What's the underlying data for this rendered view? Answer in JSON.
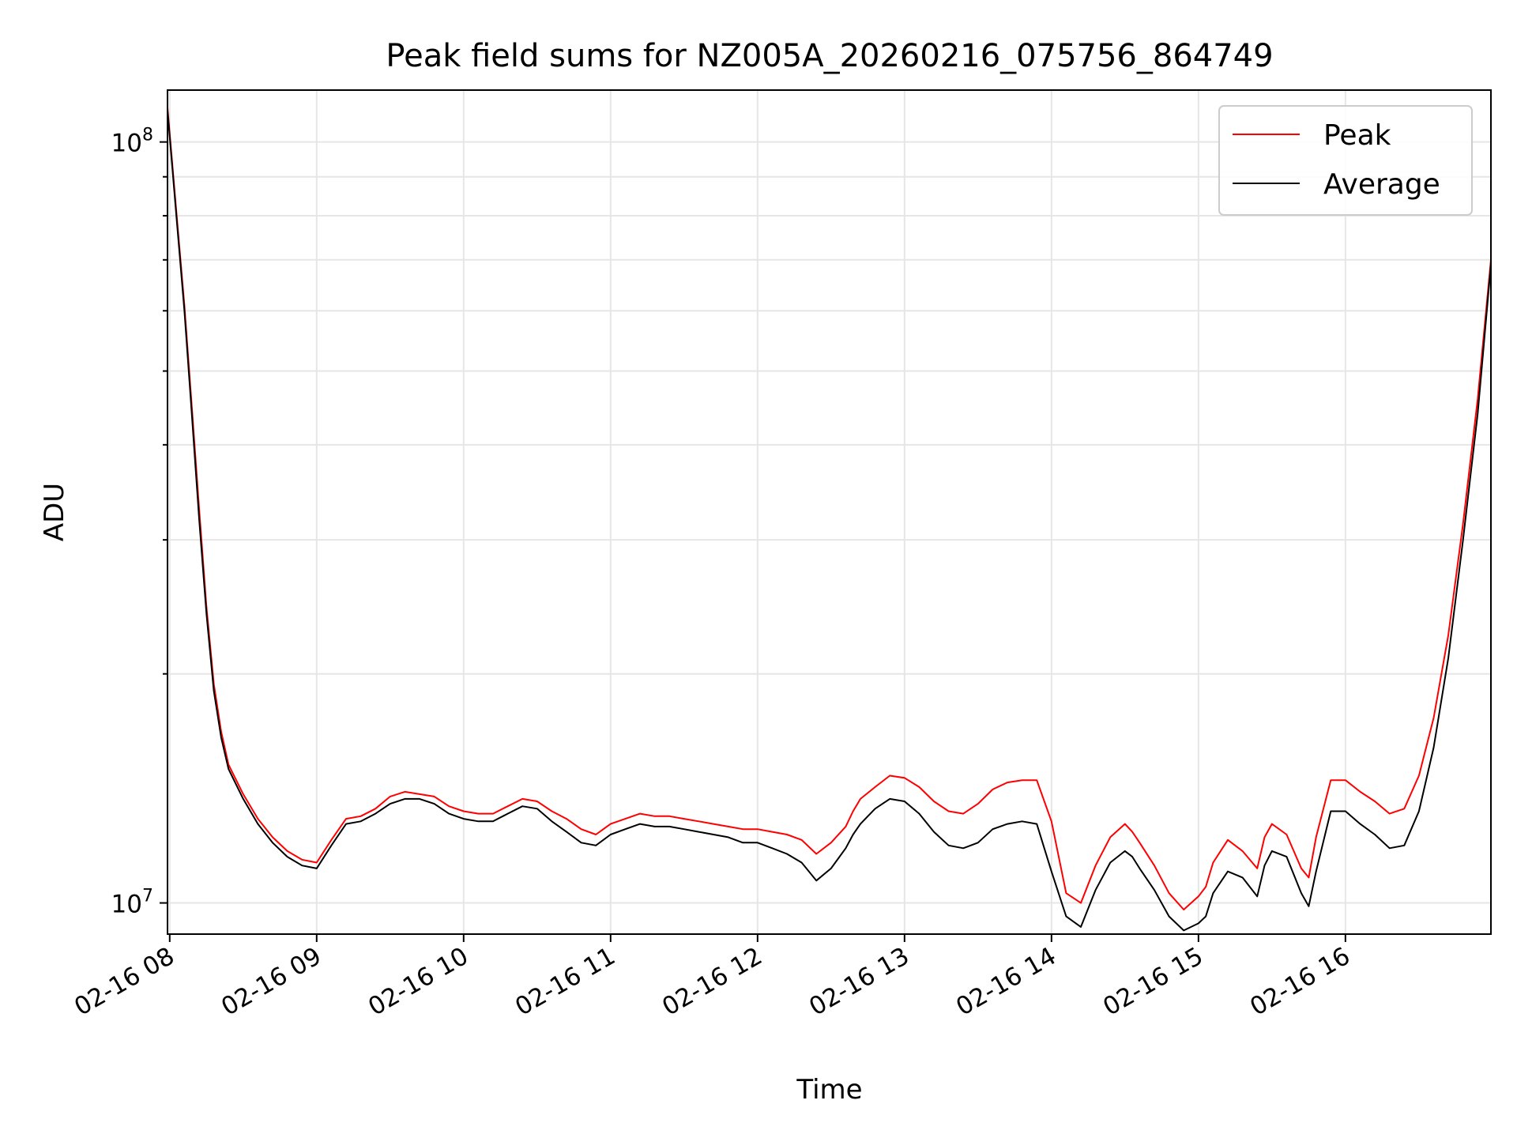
{
  "chart_data": {
    "type": "line",
    "title": "Peak field sums for NZ005A_20260216_075756_864749",
    "xlabel": "Time",
    "ylabel": "ADU",
    "yscale": "log",
    "ylim": [
      9100000,
      117000000
    ],
    "xlim_hours": [
      7.985,
      16.99
    ],
    "grid": true,
    "legend_position": "top-right",
    "x_ticks": [
      {
        "value": 8,
        "label": "02-16 08"
      },
      {
        "value": 9,
        "label": "02-16 09"
      },
      {
        "value": 10,
        "label": "02-16 10"
      },
      {
        "value": 11,
        "label": "02-16 11"
      },
      {
        "value": 12,
        "label": "02-16 12"
      },
      {
        "value": 13,
        "label": "02-16 13"
      },
      {
        "value": 14,
        "label": "02-16 14"
      },
      {
        "value": 15,
        "label": "02-16 15"
      },
      {
        "value": 16,
        "label": "02-16 16"
      }
    ],
    "y_ticks": [
      {
        "value": 10000000,
        "base": "10",
        "exp": "7"
      },
      {
        "value": 100000000,
        "base": "10",
        "exp": "8"
      }
    ],
    "x_hours": [
      7.985,
      8.05,
      8.1,
      8.15,
      8.2,
      8.25,
      8.3,
      8.35,
      8.4,
      8.5,
      8.6,
      8.7,
      8.8,
      8.9,
      9.0,
      9.1,
      9.2,
      9.3,
      9.4,
      9.5,
      9.6,
      9.7,
      9.8,
      9.9,
      10.0,
      10.1,
      10.2,
      10.3,
      10.4,
      10.5,
      10.6,
      10.7,
      10.8,
      10.9,
      11.0,
      11.1,
      11.2,
      11.3,
      11.4,
      11.5,
      11.6,
      11.7,
      11.8,
      11.9,
      12.0,
      12.1,
      12.2,
      12.3,
      12.4,
      12.5,
      12.6,
      12.65,
      12.7,
      12.8,
      12.9,
      13.0,
      13.1,
      13.2,
      13.3,
      13.4,
      13.5,
      13.6,
      13.7,
      13.8,
      13.9,
      14.0,
      14.1,
      14.2,
      14.3,
      14.4,
      14.5,
      14.55,
      14.6,
      14.7,
      14.8,
      14.9,
      15.0,
      15.05,
      15.1,
      15.2,
      15.3,
      15.4,
      15.45,
      15.5,
      15.6,
      15.7,
      15.75,
      15.8,
      15.9,
      16.0,
      16.1,
      16.2,
      16.3,
      16.4,
      16.5,
      16.6,
      16.7,
      16.8,
      16.9,
      16.99
    ],
    "series": [
      {
        "name": "Average",
        "color": "#000000",
        "values": [
          110000000,
          78000000,
          60000000,
          44000000,
          32000000,
          24000000,
          19000000,
          16500000,
          15000000,
          13700000,
          12700000,
          12000000,
          11500000,
          11200000,
          11100000,
          11900000,
          12700000,
          12800000,
          13100000,
          13500000,
          13700000,
          13700000,
          13500000,
          13100000,
          12900000,
          12800000,
          12800000,
          13100000,
          13400000,
          13300000,
          12800000,
          12400000,
          12000000,
          11900000,
          12300000,
          12500000,
          12700000,
          12600000,
          12600000,
          12500000,
          12400000,
          12300000,
          12200000,
          12000000,
          12000000,
          11800000,
          11600000,
          11300000,
          10700000,
          11100000,
          11800000,
          12300000,
          12700000,
          13300000,
          13700000,
          13600000,
          13100000,
          12400000,
          11900000,
          11800000,
          12000000,
          12500000,
          12700000,
          12800000,
          12700000,
          11000000,
          9600000,
          9300000,
          10400000,
          11300000,
          11700000,
          11500000,
          11100000,
          10400000,
          9600000,
          9200000,
          9400000,
          9600000,
          10300000,
          11000000,
          10800000,
          10200000,
          11200000,
          11700000,
          11500000,
          10300000,
          9900000,
          11000000,
          13200000,
          13200000,
          12700000,
          12300000,
          11800000,
          11900000,
          13200000,
          16000000,
          21000000,
          30000000,
          44000000,
          69000000
        ]
      },
      {
        "name": "Peak",
        "color": "#ff0000",
        "values": [
          111000000,
          79000000,
          61000000,
          45000000,
          33000000,
          24500000,
          19400000,
          16800000,
          15200000,
          13900000,
          12900000,
          12200000,
          11700000,
          11400000,
          11300000,
          12100000,
          12900000,
          13000000,
          13300000,
          13800000,
          14000000,
          13900000,
          13800000,
          13400000,
          13200000,
          13100000,
          13100000,
          13400000,
          13700000,
          13600000,
          13200000,
          12900000,
          12500000,
          12300000,
          12700000,
          12900000,
          13100000,
          13000000,
          13000000,
          12900000,
          12800000,
          12700000,
          12600000,
          12500000,
          12500000,
          12400000,
          12300000,
          12100000,
          11600000,
          12000000,
          12600000,
          13200000,
          13700000,
          14200000,
          14700000,
          14600000,
          14200000,
          13600000,
          13200000,
          13100000,
          13500000,
          14100000,
          14400000,
          14500000,
          14500000,
          12800000,
          10300000,
          10000000,
          11200000,
          12200000,
          12700000,
          12400000,
          12000000,
          11200000,
          10300000,
          9800000,
          10200000,
          10500000,
          11300000,
          12100000,
          11700000,
          11100000,
          12200000,
          12700000,
          12300000,
          11100000,
          10800000,
          12200000,
          14500000,
          14500000,
          14000000,
          13600000,
          13100000,
          13300000,
          14700000,
          17500000,
          22500000,
          31500000,
          46000000,
          70000000
        ]
      }
    ],
    "legend": [
      {
        "name": "Peak",
        "color": "#ff0000"
      },
      {
        "name": "Average",
        "color": "#000000"
      }
    ]
  }
}
